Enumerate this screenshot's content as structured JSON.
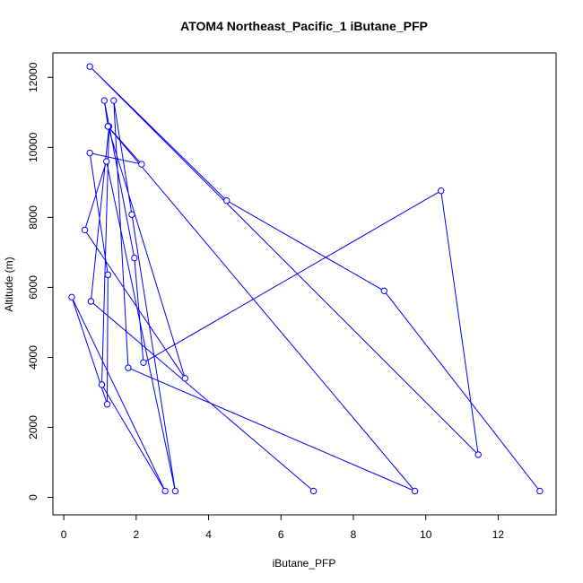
{
  "chart_data": {
    "type": "line",
    "title": "ATOM4 Northeast_Pacific_1 iButane_PFP",
    "xlabel": "iButane_PFP",
    "ylabel": "Altitude (m)",
    "xlim": [
      -0.3,
      13.6
    ],
    "ylim": [
      -500,
      12700
    ],
    "xticks": [
      0,
      2,
      4,
      6,
      8,
      10,
      12
    ],
    "yticks": [
      0,
      2000,
      4000,
      6000,
      8000,
      10000,
      12000
    ],
    "xtick_labels": [
      "0",
      "2",
      "4",
      "6",
      "8",
      "10",
      "12"
    ],
    "ytick_labels": [
      "0",
      "2000",
      "4000",
      "6000",
      "8000",
      "10000",
      "12000"
    ],
    "grid": false,
    "series": [
      {
        "color": "#0000ff",
        "marker": "open-circle",
        "x": [
          6.9,
          0.75,
          1.25,
          1.05,
          2.8,
          0.22,
          1.2,
          1.22,
          0.72,
          2.15,
          1.22,
          9.7,
          1.78,
          1.38,
          1.88,
          3.08,
          1.18,
          0.58,
          3.35,
          1.22,
          1.12,
          1.95,
          2.2,
          10.42,
          11.45,
          0.72,
          4.5,
          8.85,
          13.15
        ],
        "y": [
          180,
          5600,
          10600,
          3220,
          180,
          5720,
          2660,
          6360,
          9840,
          9520,
          10600,
          180,
          3700,
          11340,
          8080,
          180,
          9600,
          7640,
          3400,
          10600,
          11340,
          6840,
          3850,
          8760,
          1220,
          12310,
          8480,
          5900,
          180
        ]
      }
    ]
  }
}
